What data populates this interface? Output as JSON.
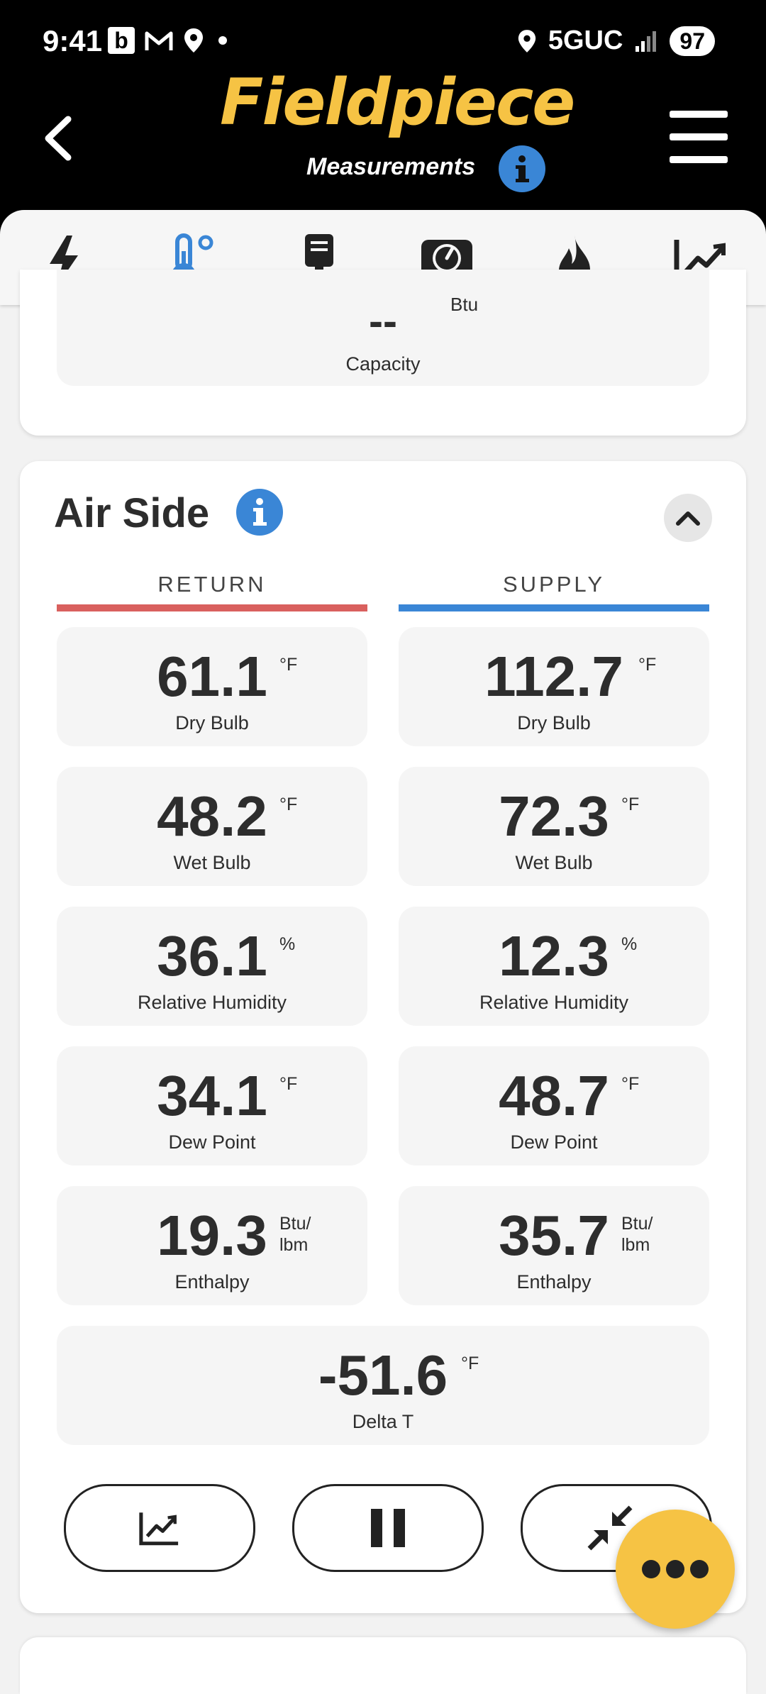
{
  "status_bar": {
    "time": "9:41",
    "b_icon": "b",
    "network": "5GUC",
    "battery": "97",
    "icons": [
      "beeper-icon",
      "gmail-icon",
      "location-icon",
      "dot-icon",
      "location-icon",
      "signal-icon"
    ]
  },
  "header": {
    "brand": "Fieldpiece",
    "subtitle": "Measurements"
  },
  "tabs": [
    {
      "icon": "lightning-icon",
      "active": false
    },
    {
      "icon": "thermometer-icon",
      "active": true
    },
    {
      "icon": "download-probe-icon",
      "active": false
    },
    {
      "icon": "gauge-icon",
      "active": false
    },
    {
      "icon": "flame-icon",
      "active": false
    },
    {
      "icon": "trend-chart-icon",
      "active": false
    }
  ],
  "capacity_tile": {
    "value": "--",
    "unit": "Btu",
    "label": "Capacity"
  },
  "air_side": {
    "title": "Air Side",
    "return_label": "RETURN",
    "supply_label": "SUPPLY",
    "return_color": "#d9605e",
    "supply_color": "#3a86d6",
    "return": [
      {
        "value": "61.1",
        "unit": "°F",
        "label": "Dry Bulb"
      },
      {
        "value": "48.2",
        "unit": "°F",
        "label": "Wet Bulb"
      },
      {
        "value": "36.1",
        "unit": "%",
        "label": "Relative Humidity"
      },
      {
        "value": "34.1",
        "unit": "°F",
        "label": "Dew Point"
      },
      {
        "value": "19.3",
        "unit": "Btu/ lbm",
        "label": "Enthalpy"
      }
    ],
    "supply": [
      {
        "value": "112.7",
        "unit": "°F",
        "label": "Dry Bulb"
      },
      {
        "value": "72.3",
        "unit": "°F",
        "label": "Wet Bulb"
      },
      {
        "value": "12.3",
        "unit": "%",
        "label": "Relative Humidity"
      },
      {
        "value": "48.7",
        "unit": "°F",
        "label": "Dew Point"
      },
      {
        "value": "35.7",
        "unit": "Btu/ lbm",
        "label": "Enthalpy"
      }
    ],
    "delta_t": {
      "value": "-51.6",
      "unit": "°F",
      "label": "Delta T"
    }
  },
  "controls": {
    "buttons": [
      "trend-chart-icon",
      "pause-icon",
      "collapse-arrows-icon"
    ]
  },
  "fab": {
    "icon": "more-dots-icon"
  },
  "colors": {
    "brand_yellow": "#f6c344",
    "info_blue": "#3a86d6"
  }
}
